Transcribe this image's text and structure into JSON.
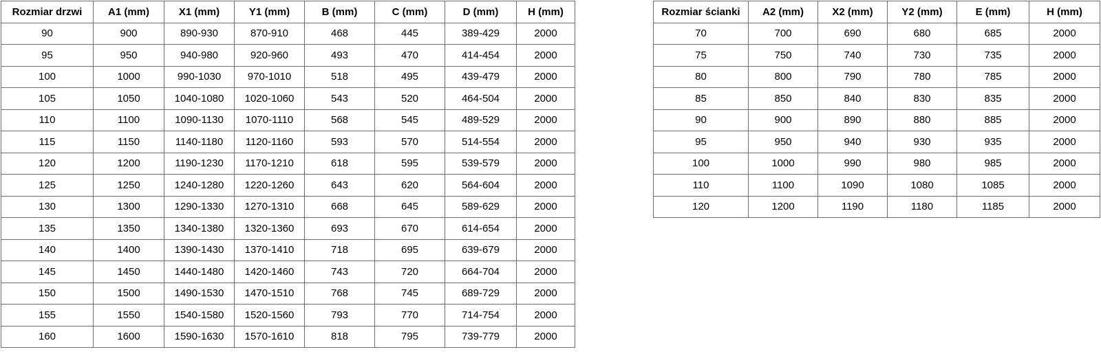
{
  "page": {
    "background": "#ffffff"
  },
  "colors": {
    "border": "#6e6e6e",
    "text": "#000000",
    "header_text": "#000000",
    "cell_background": "#ffffff"
  },
  "tables": [
    {
      "id": "door-sizes-table",
      "headers": [
        "Rozmiar drzwi",
        "A1 (mm)",
        "X1 (mm)",
        "Y1 (mm)",
        "B (mm)",
        "C (mm)",
        "D (mm)",
        "H (mm)"
      ],
      "rows": [
        [
          "90",
          "900",
          "890-930",
          "870-910",
          "468",
          "445",
          "389-429",
          "2000"
        ],
        [
          "95",
          "950",
          "940-980",
          "920-960",
          "493",
          "470",
          "414-454",
          "2000"
        ],
        [
          "100",
          "1000",
          "990-1030",
          "970-1010",
          "518",
          "495",
          "439-479",
          "2000"
        ],
        [
          "105",
          "1050",
          "1040-1080",
          "1020-1060",
          "543",
          "520",
          "464-504",
          "2000"
        ],
        [
          "110",
          "1100",
          "1090-1130",
          "1070-1110",
          "568",
          "545",
          "489-529",
          "2000"
        ],
        [
          "115",
          "1150",
          "1140-1180",
          "1120-1160",
          "593",
          "570",
          "514-554",
          "2000"
        ],
        [
          "120",
          "1200",
          "1190-1230",
          "1170-1210",
          "618",
          "595",
          "539-579",
          "2000"
        ],
        [
          "125",
          "1250",
          "1240-1280",
          "1220-1260",
          "643",
          "620",
          "564-604",
          "2000"
        ],
        [
          "130",
          "1300",
          "1290-1330",
          "1270-1310",
          "668",
          "645",
          "589-629",
          "2000"
        ],
        [
          "135",
          "1350",
          "1340-1380",
          "1320-1360",
          "693",
          "670",
          "614-654",
          "2000"
        ],
        [
          "140",
          "1400",
          "1390-1430",
          "1370-1410",
          "718",
          "695",
          "639-679",
          "2000"
        ],
        [
          "145",
          "1450",
          "1440-1480",
          "1420-1460",
          "743",
          "720",
          "664-704",
          "2000"
        ],
        [
          "150",
          "1500",
          "1490-1530",
          "1470-1510",
          "768",
          "745",
          "689-729",
          "2000"
        ],
        [
          "155",
          "1550",
          "1540-1580",
          "1520-1560",
          "793",
          "770",
          "714-754",
          "2000"
        ],
        [
          "160",
          "1600",
          "1590-1630",
          "1570-1610",
          "818",
          "795",
          "739-779",
          "2000"
        ]
      ]
    },
    {
      "id": "wall-sizes-table",
      "headers": [
        "Rozmiar ścianki",
        "A2 (mm)",
        "X2 (mm)",
        "Y2 (mm)",
        "E (mm)",
        "H (mm)"
      ],
      "rows": [
        [
          "70",
          "700",
          "690",
          "680",
          "685",
          "2000"
        ],
        [
          "75",
          "750",
          "740",
          "730",
          "735",
          "2000"
        ],
        [
          "80",
          "800",
          "790",
          "780",
          "785",
          "2000"
        ],
        [
          "85",
          "850",
          "840",
          "830",
          "835",
          "2000"
        ],
        [
          "90",
          "900",
          "890",
          "880",
          "885",
          "2000"
        ],
        [
          "95",
          "950",
          "940",
          "930",
          "935",
          "2000"
        ],
        [
          "100",
          "1000",
          "990",
          "980",
          "985",
          "2000"
        ],
        [
          "110",
          "1100",
          "1090",
          "1080",
          "1085",
          "2000"
        ],
        [
          "120",
          "1200",
          "1190",
          "1180",
          "1185",
          "2000"
        ]
      ]
    }
  ]
}
